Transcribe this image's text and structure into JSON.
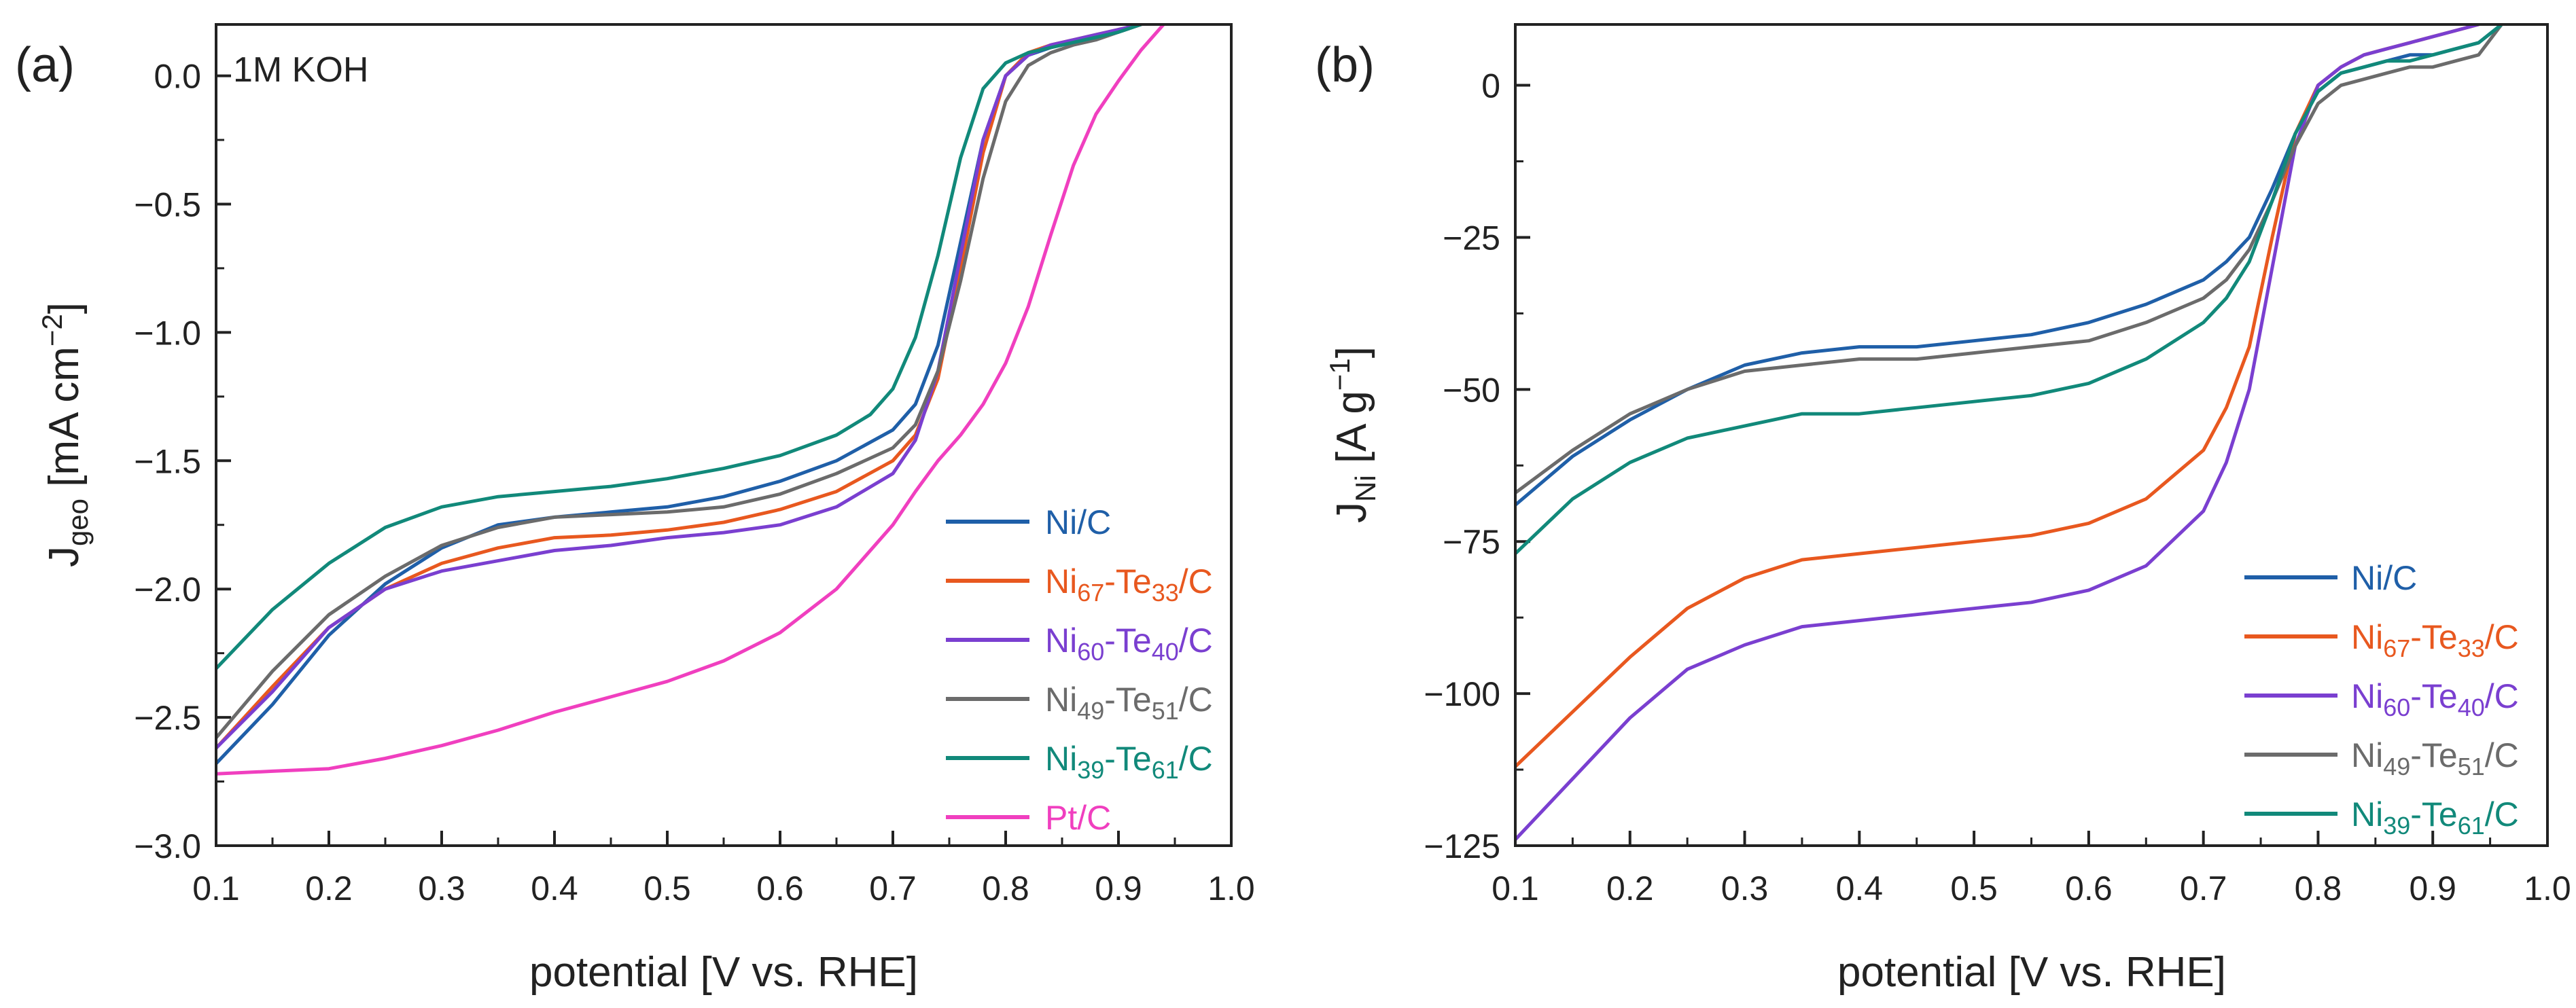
{
  "figure": {
    "panels": [
      {
        "panel_label": "(a)",
        "annotation": "1M KOH",
        "xlabel": "potential [V vs. RHE]",
        "ylabel": {
          "main": "J",
          "sub": "geo",
          "rest": " [mA cm",
          "sup": "−2",
          "close": "]"
        },
        "legend": [
          {
            "parts": [
              {
                "t": "Ni/C",
                "s": "n"
              }
            ],
            "color": "#1f5fa8"
          },
          {
            "parts": [
              {
                "t": "Ni",
                "s": "n"
              },
              {
                "t": "67",
                "s": "sub"
              },
              {
                "t": "-Te",
                "s": "n"
              },
              {
                "t": "33",
                "s": "sub"
              },
              {
                "t": "/C",
                "s": "n"
              }
            ],
            "color": "#e8581f"
          },
          {
            "parts": [
              {
                "t": "Ni",
                "s": "n"
              },
              {
                "t": "60",
                "s": "sub"
              },
              {
                "t": "-Te",
                "s": "n"
              },
              {
                "t": "40",
                "s": "sub"
              },
              {
                "t": "/C",
                "s": "n"
              }
            ],
            "color": "#7a3fd0"
          },
          {
            "parts": [
              {
                "t": "Ni",
                "s": "n"
              },
              {
                "t": "49",
                "s": "sub"
              },
              {
                "t": "-Te",
                "s": "n"
              },
              {
                "t": "51",
                "s": "sub"
              },
              {
                "t": "/C",
                "s": "n"
              }
            ],
            "color": "#6b6b6b"
          },
          {
            "parts": [
              {
                "t": "Ni",
                "s": "n"
              },
              {
                "t": "39",
                "s": "sub"
              },
              {
                "t": "-Te",
                "s": "n"
              },
              {
                "t": "61",
                "s": "sub"
              },
              {
                "t": "/C",
                "s": "n"
              }
            ],
            "color": "#11897a"
          },
          {
            "parts": [
              {
                "t": "Pt/C",
                "s": "n"
              }
            ],
            "color": "#f03fbf"
          }
        ]
      },
      {
        "panel_label": "(b)",
        "xlabel": "potential [V vs. RHE]",
        "ylabel": {
          "main": "J",
          "sub": "Ni",
          "rest": " [A g",
          "sup": "−1",
          "close": "]"
        },
        "legend": [
          {
            "parts": [
              {
                "t": "Ni/C",
                "s": "n"
              }
            ],
            "color": "#1f5fa8"
          },
          {
            "parts": [
              {
                "t": "Ni",
                "s": "n"
              },
              {
                "t": "67",
                "s": "sub"
              },
              {
                "t": "-Te",
                "s": "n"
              },
              {
                "t": "33",
                "s": "sub"
              },
              {
                "t": "/C",
                "s": "n"
              }
            ],
            "color": "#e8581f"
          },
          {
            "parts": [
              {
                "t": "Ni",
                "s": "n"
              },
              {
                "t": "60",
                "s": "sub"
              },
              {
                "t": "-Te",
                "s": "n"
              },
              {
                "t": "40",
                "s": "sub"
              },
              {
                "t": "/C",
                "s": "n"
              }
            ],
            "color": "#7a3fd0"
          },
          {
            "parts": [
              {
                "t": "Ni",
                "s": "n"
              },
              {
                "t": "49",
                "s": "sub"
              },
              {
                "t": "-Te",
                "s": "n"
              },
              {
                "t": "51",
                "s": "sub"
              },
              {
                "t": "/C",
                "s": "n"
              }
            ],
            "color": "#6b6b6b"
          },
          {
            "parts": [
              {
                "t": "Ni",
                "s": "n"
              },
              {
                "t": "39",
                "s": "sub"
              },
              {
                "t": "-Te",
                "s": "n"
              },
              {
                "t": "61",
                "s": "sub"
              },
              {
                "t": "/C",
                "s": "n"
              }
            ],
            "color": "#11897a"
          }
        ]
      }
    ]
  },
  "chart_data": [
    {
      "type": "line",
      "panel": "(a)",
      "title": "",
      "xlabel": "potential [V vs. RHE]",
      "ylabel": "J_geo [mA cm^-2]",
      "xlim": [
        0.1,
        1.0
      ],
      "ylim": [
        -3.0,
        0.2
      ],
      "xticks": [
        0.1,
        0.2,
        0.3,
        0.4,
        0.5,
        0.6,
        0.7,
        0.8,
        0.9,
        1.0
      ],
      "xtick_labels": [
        "0.1",
        "0.2",
        "0.3",
        "0.4",
        "0.5",
        "0.6",
        "0.7",
        "0.8",
        "0.9",
        "1.0"
      ],
      "yticks": [
        -3.0,
        -2.5,
        -2.0,
        -1.5,
        -1.0,
        -0.5,
        0.0
      ],
      "ytick_labels": [
        "−3.0",
        "−2.5",
        "−2.0",
        "−1.5",
        "−1.0",
        "−0.5",
        "0.0"
      ],
      "legend_position": "lower-right",
      "series": [
        {
          "name": "Ni/C",
          "color": "#1f5fa8",
          "x": [
            0.1,
            0.15,
            0.2,
            0.25,
            0.3,
            0.35,
            0.4,
            0.45,
            0.5,
            0.55,
            0.6,
            0.65,
            0.7,
            0.72,
            0.74,
            0.76,
            0.78,
            0.8,
            0.82,
            0.84,
            0.86,
            0.88,
            0.9,
            0.92
          ],
          "y": [
            -2.68,
            -2.45,
            -2.18,
            -1.98,
            -1.84,
            -1.75,
            -1.72,
            -1.7,
            -1.68,
            -1.64,
            -1.58,
            -1.5,
            -1.38,
            -1.28,
            -1.05,
            -0.65,
            -0.25,
            0.0,
            0.08,
            0.11,
            0.13,
            0.15,
            0.18,
            0.2
          ]
        },
        {
          "name": "Ni67-Te33/C",
          "color": "#e8581f",
          "x": [
            0.1,
            0.15,
            0.2,
            0.25,
            0.3,
            0.35,
            0.4,
            0.45,
            0.5,
            0.55,
            0.6,
            0.65,
            0.7,
            0.72,
            0.74,
            0.76,
            0.78,
            0.8,
            0.82,
            0.84,
            0.86,
            0.88,
            0.9,
            0.92
          ],
          "y": [
            -2.62,
            -2.38,
            -2.15,
            -2.0,
            -1.9,
            -1.84,
            -1.8,
            -1.79,
            -1.77,
            -1.74,
            -1.69,
            -1.62,
            -1.5,
            -1.4,
            -1.18,
            -0.75,
            -0.3,
            0.0,
            0.09,
            0.12,
            0.14,
            0.16,
            0.18,
            0.2
          ]
        },
        {
          "name": "Ni60-Te40/C",
          "color": "#7a3fd0",
          "x": [
            0.1,
            0.15,
            0.2,
            0.25,
            0.3,
            0.35,
            0.4,
            0.45,
            0.5,
            0.55,
            0.6,
            0.65,
            0.7,
            0.72,
            0.74,
            0.76,
            0.78,
            0.8,
            0.82,
            0.84,
            0.86,
            0.88,
            0.9,
            0.92
          ],
          "y": [
            -2.62,
            -2.4,
            -2.15,
            -2.0,
            -1.93,
            -1.89,
            -1.85,
            -1.83,
            -1.8,
            -1.78,
            -1.75,
            -1.68,
            -1.55,
            -1.42,
            -1.15,
            -0.7,
            -0.25,
            0.0,
            0.08,
            0.12,
            0.14,
            0.16,
            0.18,
            0.2
          ]
        },
        {
          "name": "Ni49-Te51/C",
          "color": "#6b6b6b",
          "x": [
            0.1,
            0.15,
            0.2,
            0.25,
            0.3,
            0.35,
            0.4,
            0.45,
            0.5,
            0.55,
            0.6,
            0.65,
            0.7,
            0.72,
            0.74,
            0.76,
            0.78,
            0.8,
            0.82,
            0.84,
            0.86,
            0.88,
            0.9,
            0.92
          ],
          "y": [
            -2.58,
            -2.32,
            -2.1,
            -1.95,
            -1.83,
            -1.76,
            -1.72,
            -1.71,
            -1.7,
            -1.68,
            -1.63,
            -1.55,
            -1.45,
            -1.36,
            -1.15,
            -0.8,
            -0.4,
            -0.1,
            0.04,
            0.09,
            0.12,
            0.14,
            0.17,
            0.2
          ]
        },
        {
          "name": "Ni39-Te61/C",
          "color": "#11897a",
          "x": [
            0.1,
            0.15,
            0.2,
            0.25,
            0.3,
            0.35,
            0.4,
            0.45,
            0.5,
            0.55,
            0.6,
            0.65,
            0.68,
            0.7,
            0.72,
            0.74,
            0.76,
            0.78,
            0.8,
            0.82,
            0.84,
            0.86,
            0.88,
            0.9,
            0.92
          ],
          "y": [
            -2.31,
            -2.08,
            -1.9,
            -1.76,
            -1.68,
            -1.64,
            -1.62,
            -1.6,
            -1.57,
            -1.53,
            -1.48,
            -1.4,
            -1.32,
            -1.22,
            -1.02,
            -0.7,
            -0.32,
            -0.05,
            0.05,
            0.09,
            0.11,
            0.13,
            0.15,
            0.17,
            0.2
          ]
        },
        {
          "name": "Pt/C",
          "color": "#f03fbf",
          "x": [
            0.1,
            0.15,
            0.2,
            0.25,
            0.3,
            0.35,
            0.4,
            0.45,
            0.5,
            0.55,
            0.6,
            0.65,
            0.7,
            0.72,
            0.74,
            0.76,
            0.78,
            0.8,
            0.82,
            0.84,
            0.86,
            0.88,
            0.9,
            0.92,
            0.94
          ],
          "y": [
            -2.72,
            -2.71,
            -2.7,
            -2.66,
            -2.61,
            -2.55,
            -2.48,
            -2.42,
            -2.36,
            -2.28,
            -2.17,
            -2.0,
            -1.75,
            -1.62,
            -1.5,
            -1.4,
            -1.28,
            -1.12,
            -0.9,
            -0.62,
            -0.35,
            -0.15,
            -0.02,
            0.1,
            0.2
          ]
        }
      ]
    },
    {
      "type": "line",
      "panel": "(b)",
      "title": "",
      "xlabel": "potential [V vs. RHE]",
      "ylabel": "J_Ni [A g^-1]",
      "xlim": [
        0.1,
        1.0
      ],
      "ylim": [
        -125,
        10
      ],
      "xticks": [
        0.1,
        0.2,
        0.3,
        0.4,
        0.5,
        0.6,
        0.7,
        0.8,
        0.9,
        1.0
      ],
      "xtick_labels": [
        "0.1",
        "0.2",
        "0.3",
        "0.4",
        "0.5",
        "0.6",
        "0.7",
        "0.8",
        "0.9",
        "1.0"
      ],
      "yticks": [
        -125,
        -100,
        -75,
        -50,
        -25,
        0
      ],
      "ytick_labels": [
        "−125",
        "−100",
        "−75",
        "−50",
        "−25",
        "0"
      ],
      "legend_position": "lower-right",
      "series": [
        {
          "name": "Ni/C",
          "color": "#1f5fa8",
          "x": [
            0.1,
            0.15,
            0.2,
            0.25,
            0.3,
            0.35,
            0.4,
            0.45,
            0.5,
            0.55,
            0.6,
            0.65,
            0.7,
            0.72,
            0.74,
            0.76,
            0.78,
            0.8,
            0.82,
            0.84,
            0.86,
            0.88,
            0.9,
            0.92,
            0.94,
            0.96
          ],
          "y": [
            -69,
            -61,
            -55,
            -50,
            -46,
            -44,
            -43,
            -43,
            -42,
            -41,
            -39,
            -36,
            -32,
            -29,
            -25,
            -17,
            -8,
            -1,
            2,
            3,
            4,
            5,
            5,
            6,
            7,
            10
          ]
        },
        {
          "name": "Ni67-Te33/C",
          "color": "#e8581f",
          "x": [
            0.1,
            0.15,
            0.2,
            0.25,
            0.3,
            0.35,
            0.4,
            0.45,
            0.5,
            0.55,
            0.6,
            0.65,
            0.7,
            0.72,
            0.74,
            0.76,
            0.78,
            0.8,
            0.82,
            0.84,
            0.86,
            0.88,
            0.9,
            0.92,
            0.94
          ],
          "y": [
            -112,
            -103,
            -94,
            -86,
            -81,
            -78,
            -77,
            -76,
            -75,
            -74,
            -72,
            -68,
            -60,
            -53,
            -43,
            -25,
            -8,
            0,
            3,
            5,
            6,
            7,
            8,
            9,
            10
          ]
        },
        {
          "name": "Ni60-Te40/C",
          "color": "#7a3fd0",
          "x": [
            0.1,
            0.15,
            0.2,
            0.25,
            0.3,
            0.35,
            0.4,
            0.45,
            0.5,
            0.55,
            0.6,
            0.65,
            0.7,
            0.72,
            0.74,
            0.76,
            0.78,
            0.8,
            0.82,
            0.84,
            0.86,
            0.88,
            0.9,
            0.92,
            0.94
          ],
          "y": [
            -124,
            -114,
            -104,
            -96,
            -92,
            -89,
            -88,
            -87,
            -86,
            -85,
            -83,
            -79,
            -70,
            -62,
            -50,
            -30,
            -10,
            0,
            3,
            5,
            6,
            7,
            8,
            9,
            10
          ]
        },
        {
          "name": "Ni49-Te51/C",
          "color": "#6b6b6b",
          "x": [
            0.1,
            0.15,
            0.2,
            0.25,
            0.3,
            0.35,
            0.4,
            0.45,
            0.5,
            0.55,
            0.6,
            0.65,
            0.7,
            0.72,
            0.74,
            0.76,
            0.78,
            0.8,
            0.82,
            0.84,
            0.86,
            0.88,
            0.9,
            0.92,
            0.94,
            0.96
          ],
          "y": [
            -67,
            -60,
            -54,
            -50,
            -47,
            -46,
            -45,
            -45,
            -44,
            -43,
            -42,
            -39,
            -35,
            -32,
            -27,
            -19,
            -10,
            -3,
            0,
            1,
            2,
            3,
            3,
            4,
            5,
            10
          ]
        },
        {
          "name": "Ni39-Te61/C",
          "color": "#11897a",
          "x": [
            0.1,
            0.15,
            0.2,
            0.25,
            0.3,
            0.35,
            0.4,
            0.45,
            0.5,
            0.55,
            0.6,
            0.65,
            0.7,
            0.72,
            0.74,
            0.76,
            0.78,
            0.8,
            0.82,
            0.84,
            0.86,
            0.88,
            0.9,
            0.92,
            0.94,
            0.96
          ],
          "y": [
            -77,
            -68,
            -62,
            -58,
            -56,
            -54,
            -54,
            -53,
            -52,
            -51,
            -49,
            -45,
            -39,
            -35,
            -29,
            -19,
            -8,
            -1,
            2,
            3,
            4,
            4,
            5,
            6,
            7,
            10
          ]
        }
      ]
    }
  ]
}
